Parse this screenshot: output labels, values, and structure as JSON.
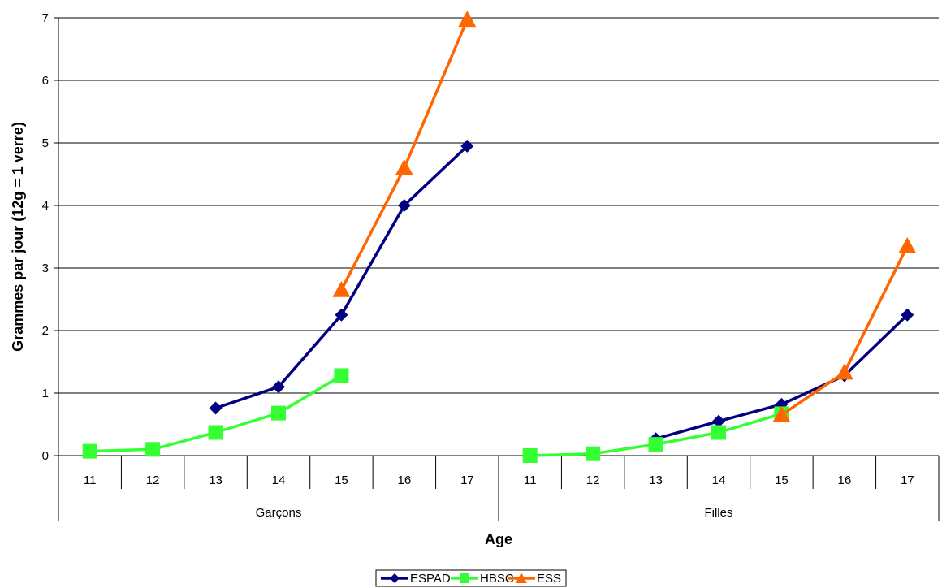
{
  "chart_data": {
    "type": "line",
    "xlabel": "Age",
    "ylabel": "Grammes par jour (12g = 1 verre)",
    "ylim": [
      0,
      7
    ],
    "yticks": [
      0,
      1,
      2,
      3,
      4,
      5,
      6,
      7
    ],
    "grid": true,
    "legend_position": "bottom",
    "groups": [
      {
        "name": "Garçons",
        "categories": [
          "11",
          "12",
          "13",
          "14",
          "15",
          "16",
          "17"
        ]
      },
      {
        "name": "Filles",
        "categories": [
          "11",
          "12",
          "13",
          "14",
          "15",
          "16",
          "17"
        ]
      }
    ],
    "series": [
      {
        "name": "ESPAD",
        "color": "#000080",
        "marker": "diamond",
        "values": [
          null,
          null,
          0.76,
          1.1,
          2.25,
          4.0,
          4.95,
          null,
          null,
          0.27,
          0.55,
          0.82,
          1.28,
          2.25
        ]
      },
      {
        "name": "HBSC",
        "color": "#33ff33",
        "marker": "square",
        "values": [
          0.07,
          0.1,
          0.37,
          0.68,
          1.28,
          null,
          null,
          0.0,
          0.03,
          0.18,
          0.37,
          0.67,
          null,
          null
        ]
      },
      {
        "name": "ESS",
        "color": "#ff6600",
        "marker": "triangle",
        "values": [
          null,
          null,
          null,
          null,
          2.65,
          4.6,
          6.97,
          null,
          null,
          null,
          null,
          0.65,
          1.33,
          3.35
        ]
      }
    ]
  }
}
